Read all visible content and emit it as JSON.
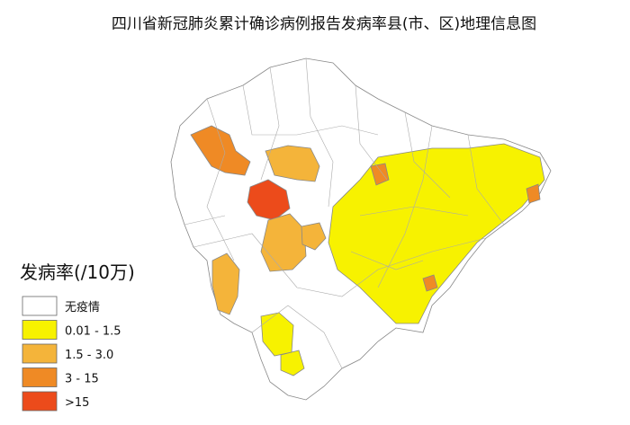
{
  "header": {
    "title": "四川省新冠肺炎累计确诊病例报告发病率县(市、区)地理信息图"
  },
  "legend": {
    "title": "发病率(/10万)",
    "items": [
      {
        "label": "无疫情",
        "color": "#ffffff"
      },
      {
        "label": "0.01 - 1.5",
        "color": "#f7f200"
      },
      {
        "label": "1.5 - 3.0",
        "color": "#f4b43a"
      },
      {
        "label": "3 - 15",
        "color": "#ef8a25"
      },
      {
        "label": ">15",
        "color": "#ec4b1b"
      }
    ]
  }
}
